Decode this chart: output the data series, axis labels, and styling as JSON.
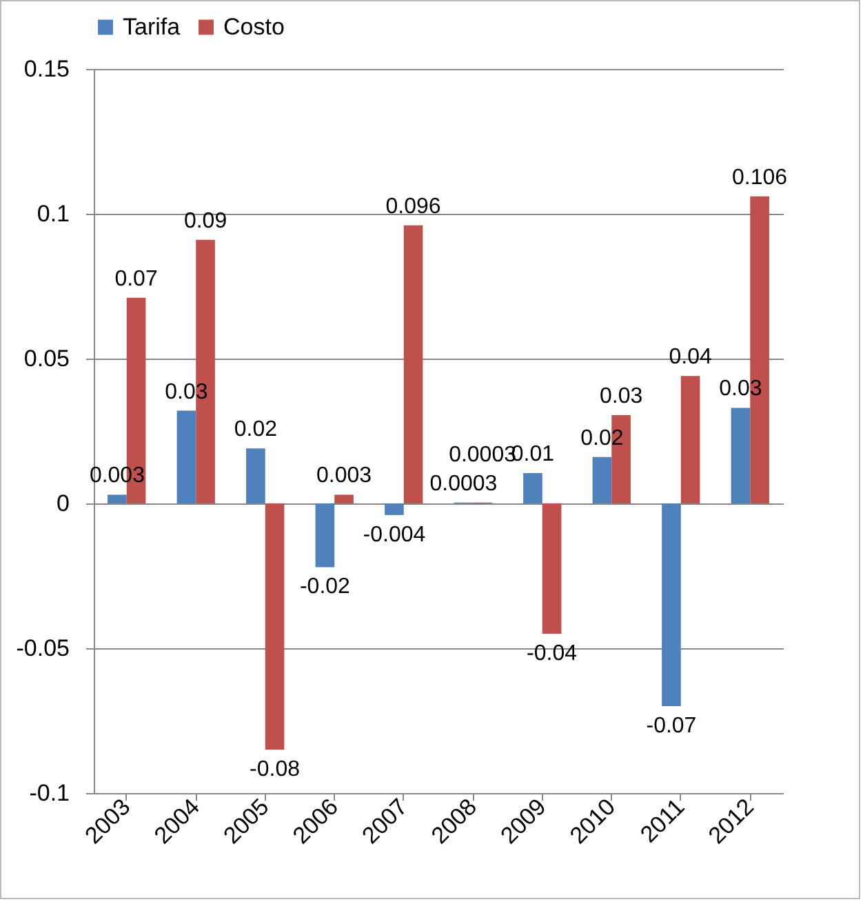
{
  "chart_data": {
    "type": "bar",
    "categories": [
      "2003",
      "2004",
      "2005",
      "2006",
      "2007",
      "2008",
      "2009",
      "2010",
      "2011",
      "2012"
    ],
    "series": [
      {
        "name": "Tarifa",
        "color": "#4f81bd",
        "values": [
          0.003,
          0.032,
          0.019,
          -0.022,
          -0.004,
          0.0003,
          0.0105,
          0.016,
          -0.07,
          0.033
        ],
        "value_labels": [
          "0.003",
          "0.03",
          "0.02",
          "-0.02",
          "-0.004",
          "0.0003",
          "0.01",
          "0.02",
          "-0.07",
          "0.03"
        ]
      },
      {
        "name": "Costo",
        "color": "#c0504d",
        "values": [
          0.071,
          0.091,
          -0.085,
          0.003,
          0.096,
          0.0003,
          -0.045,
          0.0305,
          0.044,
          0.106
        ],
        "value_labels": [
          "0.07",
          "0.09",
          "-0.08",
          "0.003",
          "0.096",
          "0.0003",
          "-0.04",
          "0.03",
          "0.04",
          "0.106"
        ]
      }
    ],
    "ylim": [
      -0.1,
      0.15
    ],
    "yticks": [
      -0.1,
      -0.05,
      0,
      0.05,
      0.1,
      0.15
    ],
    "grid": "y",
    "legend": "top"
  }
}
